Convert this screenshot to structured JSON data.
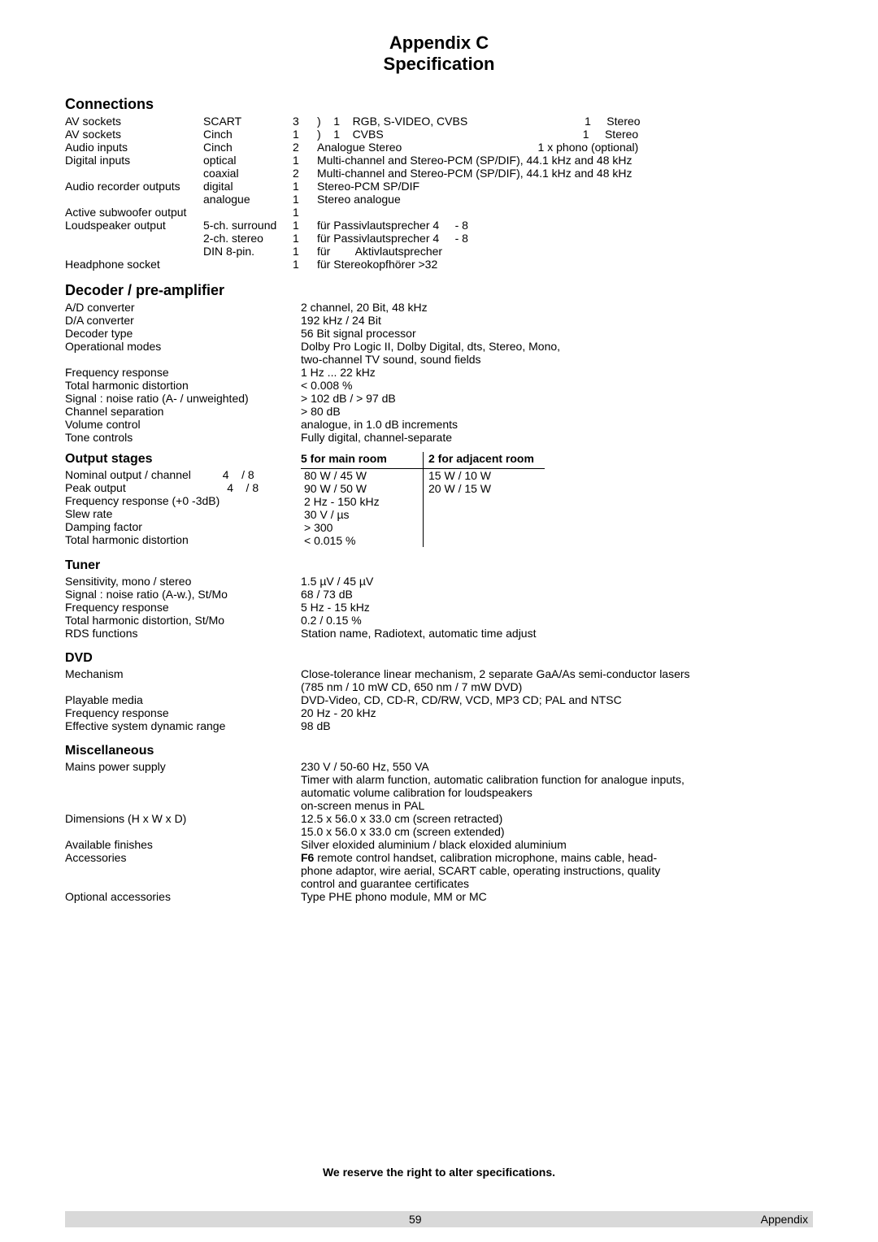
{
  "title1": "Appendix C",
  "title2": "Specification",
  "connections": {
    "heading": "Connections",
    "rows": [
      {
        "label": "AV sockets",
        "mid": "SCART",
        "n": "3",
        "right": ")    1    RGB, S-VIDEO, CVBS                                     1     Stereo"
      },
      {
        "label": "AV sockets",
        "mid": "Cinch",
        "n": "1",
        "right": ")    1    CVBS                                                               1     Stereo"
      },
      {
        "label": "Audio inputs",
        "mid": "Cinch",
        "n": "2",
        "right": "Analogue Stereo                                           1 x phono (optional)"
      },
      {
        "label": "Digital inputs",
        "mid": "optical",
        "n": "1",
        "right": "Multi-channel and Stereo-PCM (SP/DIF), 44.1 kHz and 48 kHz"
      },
      {
        "label": "",
        "mid": "coaxial",
        "n": "2",
        "right": "Multi-channel and Stereo-PCM (SP/DIF), 44.1 kHz and 48 kHz"
      },
      {
        "label": "Audio recorder outputs",
        "mid": "digital",
        "n": "1",
        "right": "Stereo-PCM SP/DIF"
      },
      {
        "label": "",
        "mid": "analogue",
        "n": "1",
        "right": "Stereo analogue"
      },
      {
        "label": "Active subwoofer output",
        "mid": "",
        "n": "1",
        "right": ""
      },
      {
        "label": "Loudspeaker output",
        "mid": "5-ch. surround",
        "n": "1",
        "right": "für Passivlautsprecher 4     - 8"
      },
      {
        "label": "",
        "mid": "2-ch. stereo",
        "n": "1",
        "right": "für Passivlautsprecher 4     - 8"
      },
      {
        "label": "",
        "mid": "DIN 8-pin.",
        "n": "1",
        "right": "für        Aktivlautsprecher"
      },
      {
        "label": "Headphone socket",
        "mid": "",
        "n": "1",
        "right": "für Stereokopfhörer >32"
      }
    ]
  },
  "decoder": {
    "heading": "Decoder / pre-amplifier",
    "rows": [
      {
        "l": "A/D converter",
        "r": "2 channel, 20 Bit, 48 kHz"
      },
      {
        "l": "D/A converter",
        "r": "192 kHz / 24 Bit"
      },
      {
        "l": "Decoder type",
        "r": "56 Bit signal processor"
      },
      {
        "l": "Operational modes",
        "r": "Dolby Pro Logic II, Dolby Digital, dts, Stereo, Mono,"
      },
      {
        "l": "",
        "r": "two-channel TV sound, sound fields"
      },
      {
        "l": "Frequency response",
        "r": "1 Hz ... 22 kHz"
      },
      {
        "l": "Total harmonic distortion",
        "r": "< 0.008 %"
      },
      {
        "l": "Signal : noise ratio (A- / unweighted)",
        "r": "> 102 dB / > 97 dB"
      },
      {
        "l": "Channel separation",
        "r": "> 80 dB"
      },
      {
        "l": "Volume control",
        "r": "analogue, in 1.0 dB increments"
      },
      {
        "l": "Tone controls",
        "r": "Fully digital, channel-separate"
      }
    ]
  },
  "output": {
    "heading": "Output stages",
    "head_main": "5 for main room",
    "head_adj": "2 for adjacent room",
    "labels": [
      "Nominal output / channel          4    / 8",
      "Peak output                                4    / 8",
      "Frequency response (+0 -3dB)",
      "Slew rate",
      "Damping factor",
      "Total harmonic distortion"
    ],
    "main_vals": [
      "80 W / 45 W",
      "90 W / 50 W",
      "2 Hz - 150 kHz",
      "30 V / µs",
      "> 300",
      "< 0.015 %"
    ],
    "adj_vals": [
      "15 W / 10 W",
      "20 W / 15 W",
      "",
      "",
      "",
      ""
    ]
  },
  "tuner": {
    "heading": "Tuner",
    "rows": [
      {
        "l": "Sensitivity, mono / stereo",
        "r": "1.5 µV / 45 µV"
      },
      {
        "l": "Signal : noise ratio (A-w.), St/Mo",
        "r": "68 / 73 dB"
      },
      {
        "l": "Frequency response",
        "r": "5 Hz - 15 kHz"
      },
      {
        "l": "Total harmonic distortion, St/Mo",
        "r": "0.2 / 0.15 %"
      },
      {
        "l": "RDS functions",
        "r": "Station name, Radiotext, automatic time adjust"
      }
    ]
  },
  "dvd": {
    "heading": "DVD",
    "rows": [
      {
        "l": "Mechanism",
        "r": "Close-tolerance linear mechanism, 2 separate GaA/As semi-conductor lasers"
      },
      {
        "l": "",
        "r": "(785 nm / 10 mW CD, 650 nm / 7 mW DVD)"
      },
      {
        "l": "Playable media",
        "r": "DVD-Video, CD, CD-R, CD/RW, VCD, MP3 CD; PAL and NTSC"
      },
      {
        "l": "Frequency response",
        "r": "20 Hz - 20 kHz"
      },
      {
        "l": "Effective system dynamic range",
        "r": "98 dB"
      }
    ]
  },
  "misc": {
    "heading": "Miscellaneous",
    "rows": [
      {
        "l": "Mains power supply",
        "r": "230 V / 50-60 Hz, 550 VA"
      },
      {
        "l": "",
        "r": "Timer with alarm function, automatic calibration function for analogue inputs,"
      },
      {
        "l": "",
        "r": "automatic volume calibration for loudspeakers"
      },
      {
        "l": "",
        "r": "on-screen menus in PAL"
      },
      {
        "l": "Dimensions (H x W x D)",
        "r": "12.5 x 56.0 x 33.0 cm        (screen retracted)"
      },
      {
        "l": "",
        "r": "15.0 x 56.0 x 33.0 cm        (screen extended)"
      },
      {
        "l": "Available finishes",
        "r": "Silver eloxided aluminium / black eloxided aluminium"
      },
      {
        "l": "Accessories",
        "r": "F6 remote control handset, calibration microphone, mains cable, head-"
      },
      {
        "l": "",
        "r": "phone adaptor, wire aerial, SCART cable, operating instructions, quality"
      },
      {
        "l": "",
        "r": "control and guarantee certificates"
      },
      {
        "l": "Optional accessories",
        "r": "Type PHE phono module, MM or MC"
      }
    ]
  },
  "footer": {
    "line": "We reserve the right to alter specifications.",
    "page": "59",
    "section": "Appendix"
  }
}
